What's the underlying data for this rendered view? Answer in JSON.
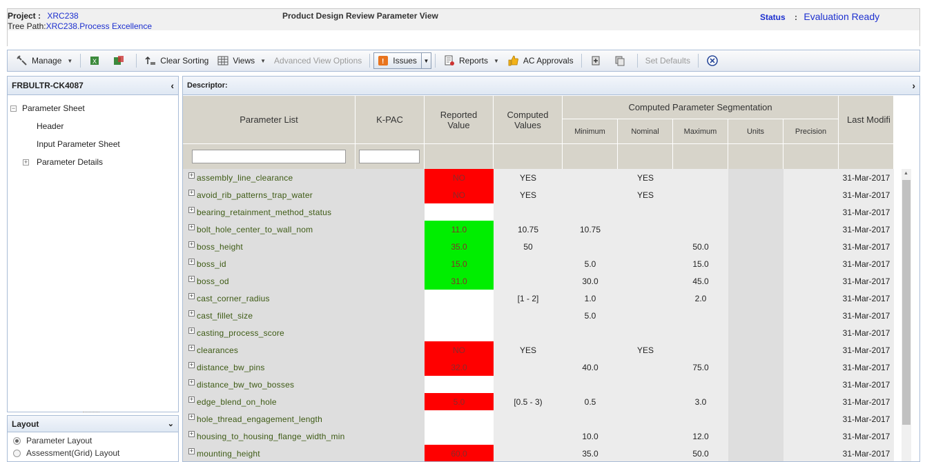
{
  "header": {
    "project_label": "Project  :",
    "project_value": "XRC238",
    "tree_path_label": "Tree Path:",
    "tree_path_value": "XRC238.Process Excellence",
    "title": "Product Design Review Parameter View",
    "status_label": "Status",
    "status_sep": ":",
    "status_value": "Evaluation Ready"
  },
  "toolbar": {
    "manage": "Manage",
    "clear_sorting": "Clear Sorting",
    "views": "Views",
    "advanced_view_options": "Advanced View Options",
    "issues": "Issues",
    "reports": "Reports",
    "ac_approvals": "AC Approvals",
    "set_defaults": "Set Defaults"
  },
  "left_panel": {
    "title": "FRBULTR-CK4087",
    "tree": {
      "root": "Parameter Sheet",
      "children": [
        "Header",
        "Input Parameter Sheet",
        "Parameter Details"
      ]
    }
  },
  "layout_panel": {
    "title": "Layout",
    "options": [
      "Parameter Layout",
      "Assessment(Grid) Layout"
    ],
    "selected": "Parameter Layout"
  },
  "grid": {
    "descriptor_label": "Descriptor:",
    "columns": {
      "parameter_list": "Parameter List",
      "kpac": "K-PAC",
      "reported_value": "Reported Value",
      "computed_values": "Computed Values",
      "segmentation": "Computed Parameter Segmentation",
      "minimum": "Minimum",
      "nominal": "Nominal",
      "maximum": "Maximum",
      "units": "Units",
      "precision": "Precision",
      "last_modified": "Last Modifi"
    },
    "rows": [
      {
        "name": "assembly_line_clearance",
        "reported": "NO",
        "status": "red",
        "computed": "YES",
        "min": "",
        "nom": "YES",
        "max": "",
        "date": "31-Mar-2017"
      },
      {
        "name": "avoid_rib_patterns_trap_water",
        "reported": "NO",
        "status": "red",
        "computed": "YES",
        "min": "",
        "nom": "YES",
        "max": "",
        "date": "31-Mar-2017"
      },
      {
        "name": "bearing_retainment_method_status",
        "reported": "",
        "status": "white",
        "computed": "",
        "min": "",
        "nom": "",
        "max": "",
        "date": "31-Mar-2017"
      },
      {
        "name": "bolt_hole_center_to_wall_nom",
        "reported": "11.0",
        "status": "green",
        "computed": "10.75",
        "min": "10.75",
        "nom": "",
        "max": "",
        "date": "31-Mar-2017"
      },
      {
        "name": "boss_height",
        "reported": "35.0",
        "status": "green",
        "computed": "50",
        "min": "",
        "nom": "",
        "max": "50.0",
        "date": "31-Mar-2017"
      },
      {
        "name": "boss_id",
        "reported": "15.0",
        "status": "green",
        "computed": "",
        "min": "5.0",
        "nom": "",
        "max": "15.0",
        "date": "31-Mar-2017"
      },
      {
        "name": "boss_od",
        "reported": "31.0",
        "status": "green",
        "computed": "",
        "min": "30.0",
        "nom": "",
        "max": "45.0",
        "date": "31-Mar-2017"
      },
      {
        "name": "cast_corner_radius",
        "reported": "",
        "status": "white",
        "computed": "[1 - 2]",
        "min": "1.0",
        "nom": "",
        "max": "2.0",
        "date": "31-Mar-2017"
      },
      {
        "name": "cast_fillet_size",
        "reported": "",
        "status": "white",
        "computed": "",
        "min": "5.0",
        "nom": "",
        "max": "",
        "date": "31-Mar-2017"
      },
      {
        "name": "casting_process_score",
        "reported": "",
        "status": "white",
        "computed": "",
        "min": "",
        "nom": "",
        "max": "",
        "date": "31-Mar-2017"
      },
      {
        "name": "clearances",
        "reported": "NO",
        "status": "red",
        "computed": "YES",
        "min": "",
        "nom": "YES",
        "max": "",
        "date": "31-Mar-2017"
      },
      {
        "name": "distance_bw_pins",
        "reported": "32.0",
        "status": "red",
        "computed": "",
        "min": "40.0",
        "nom": "",
        "max": "75.0",
        "date": "31-Mar-2017"
      },
      {
        "name": "distance_bw_two_bosses",
        "reported": "",
        "status": "white",
        "computed": "",
        "min": "",
        "nom": "",
        "max": "",
        "date": "31-Mar-2017"
      },
      {
        "name": "edge_blend_on_hole",
        "reported": "5.0",
        "status": "red",
        "computed": "[0.5 - 3)",
        "min": "0.5",
        "nom": "",
        "max": "3.0",
        "date": "31-Mar-2017"
      },
      {
        "name": "hole_thread_engagement_length",
        "reported": "",
        "status": "white",
        "computed": "",
        "min": "",
        "nom": "",
        "max": "",
        "date": "31-Mar-2017"
      },
      {
        "name": "housing_to_housing_flange_width_min",
        "reported": "",
        "status": "white",
        "computed": "",
        "min": "10.0",
        "nom": "",
        "max": "12.0",
        "date": "31-Mar-2017"
      },
      {
        "name": "mounting_height",
        "reported": "60.0",
        "status": "red",
        "computed": "",
        "min": "35.0",
        "nom": "",
        "max": "50.0",
        "date": "31-Mar-2017"
      }
    ]
  },
  "colors": {
    "red": "#ff0000",
    "green": "#00ee00",
    "link_blue": "#1c2fcf"
  }
}
